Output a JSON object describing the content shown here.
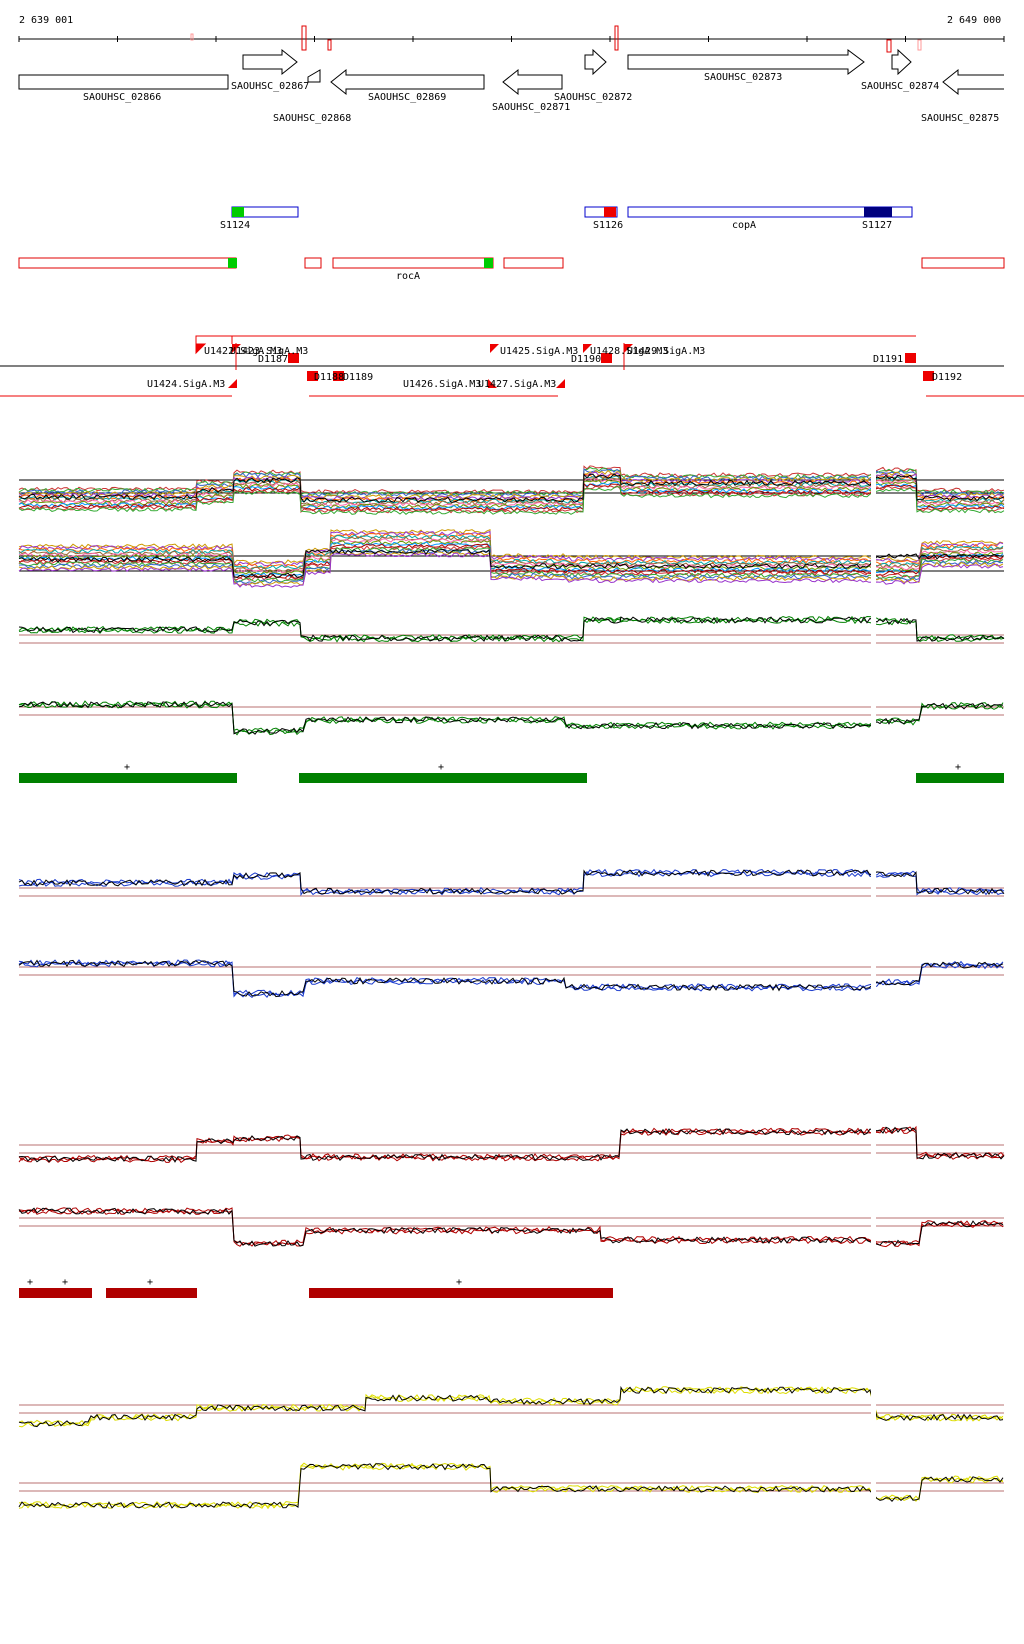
{
  "coords": {
    "start": "2 639 001",
    "end": "2 649 000"
  },
  "genes": [
    {
      "name": "SAOUHSC_02866",
      "strand": "-"
    },
    {
      "name": "SAOUHSC_02867",
      "strand": "+"
    },
    {
      "name": "SAOUHSC_02868",
      "strand": "-"
    },
    {
      "name": "SAOUHSC_02869",
      "strand": "-"
    },
    {
      "name": "SAOUHSC_02871",
      "strand": "-"
    },
    {
      "name": "SAOUHSC_02872",
      "strand": "+"
    },
    {
      "name": "SAOUHSC_02873",
      "strand": "+"
    },
    {
      "name": "SAOUHSC_02874",
      "strand": "+"
    },
    {
      "name": "SAOUHSC_02875",
      "strand": "-"
    }
  ],
  "plus_features": [
    "S1124",
    "S1126",
    "copA",
    "S1127"
  ],
  "minus_features": [
    "rocA"
  ],
  "upshifts": [
    "U1422.SigA.M3",
    "U1423.SigA.M3",
    "U1424.SigA.M3",
    "U1425.SigA.M3",
    "U1426.SigA.M3",
    "U1427.SigA.M3",
    "U1428.SigA.M3",
    "U1429.SigA.M3"
  ],
  "downshifts": [
    "D1187",
    "D1188",
    "D1189",
    "D1190",
    "D1191",
    "D1192"
  ],
  "marks": {
    "plus_sign": "+"
  },
  "colors": {
    "gene_outline": "#000000",
    "annot_plus": "#0000cc",
    "annot_plus_fill": "#000080",
    "annot_minus": "#e00000",
    "sig_green": "#00cc00",
    "sig_red": "#ee0000",
    "track_green": "#008000",
    "track_blue": "#1a3acc",
    "track_red": "#b00000",
    "track_yellow": "#dddd00",
    "ref_line": "#a04040"
  }
}
